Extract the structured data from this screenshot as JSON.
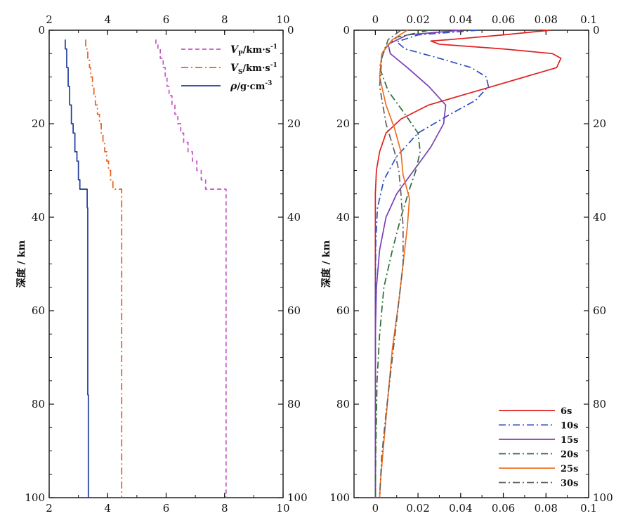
{
  "ylabel": "深度 / km",
  "chart_data": [
    {
      "type": "line",
      "panel": "velocity-density-profile",
      "xlim": [
        2,
        10
      ],
      "ylim": [
        0,
        100
      ],
      "y_inverted": true,
      "x_ticks": [
        2,
        4,
        6,
        8,
        10
      ],
      "y_ticks": [
        0,
        20,
        40,
        60,
        80,
        100
      ],
      "ylabel": "深度 / km",
      "legend_position": "top-right",
      "series": [
        {
          "name": "Vp",
          "legend": {
            "sym": "V",
            "sub": "P",
            "unit": "/km·s",
            "sup": "-1"
          },
          "color": "#c455c4",
          "dash": "6,4",
          "points": [
            [
              5.65,
              2
            ],
            [
              5.65,
              3
            ],
            [
              5.72,
              3
            ],
            [
              5.72,
              4
            ],
            [
              5.8,
              4
            ],
            [
              5.8,
              6
            ],
            [
              5.9,
              6
            ],
            [
              5.9,
              8
            ],
            [
              5.97,
              8
            ],
            [
              5.97,
              10
            ],
            [
              6.03,
              10
            ],
            [
              6.03,
              12
            ],
            [
              6.1,
              12
            ],
            [
              6.1,
              14
            ],
            [
              6.2,
              14
            ],
            [
              6.2,
              16
            ],
            [
              6.3,
              16
            ],
            [
              6.3,
              18
            ],
            [
              6.4,
              18
            ],
            [
              6.4,
              20
            ],
            [
              6.5,
              20
            ],
            [
              6.5,
              22
            ],
            [
              6.6,
              22
            ],
            [
              6.6,
              24
            ],
            [
              6.75,
              24
            ],
            [
              6.75,
              26
            ],
            [
              6.9,
              26
            ],
            [
              6.9,
              28
            ],
            [
              7.05,
              28
            ],
            [
              7.05,
              30
            ],
            [
              7.2,
              30
            ],
            [
              7.2,
              32
            ],
            [
              7.35,
              32
            ],
            [
              7.35,
              34
            ],
            [
              8.05,
              34
            ],
            [
              8.05,
              100
            ]
          ]
        },
        {
          "name": "Vs",
          "legend": {
            "sym": "V",
            "sub": "S",
            "unit": "/km·s",
            "sup": "-1"
          },
          "color": "#e8601c",
          "dash": "10,4,2,4",
          "points": [
            [
              3.25,
              2
            ],
            [
              3.25,
              4
            ],
            [
              3.32,
              4
            ],
            [
              3.32,
              6
            ],
            [
              3.38,
              6
            ],
            [
              3.38,
              8
            ],
            [
              3.42,
              8
            ],
            [
              3.42,
              10
            ],
            [
              3.48,
              10
            ],
            [
              3.48,
              12
            ],
            [
              3.53,
              12
            ],
            [
              3.53,
              14
            ],
            [
              3.58,
              14
            ],
            [
              3.58,
              16
            ],
            [
              3.65,
              16
            ],
            [
              3.65,
              18
            ],
            [
              3.72,
              18
            ],
            [
              3.72,
              20
            ],
            [
              3.78,
              20
            ],
            [
              3.78,
              22
            ],
            [
              3.84,
              22
            ],
            [
              3.84,
              24
            ],
            [
              3.9,
              24
            ],
            [
              3.9,
              26
            ],
            [
              3.97,
              26
            ],
            [
              3.97,
              28
            ],
            [
              4.03,
              28
            ],
            [
              4.03,
              30
            ],
            [
              4.1,
              30
            ],
            [
              4.1,
              32
            ],
            [
              4.18,
              32
            ],
            [
              4.18,
              34
            ],
            [
              4.48,
              34
            ],
            [
              4.48,
              100
            ]
          ]
        },
        {
          "name": "rho",
          "legend": {
            "sym": "ρ",
            "sub": "",
            "unit": "/g·cm",
            "sup": "-3"
          },
          "color": "#1f3d99",
          "dash": "",
          "points": [
            [
              2.55,
              2
            ],
            [
              2.55,
              4
            ],
            [
              2.6,
              4
            ],
            [
              2.6,
              8
            ],
            [
              2.65,
              8
            ],
            [
              2.65,
              12
            ],
            [
              2.7,
              12
            ],
            [
              2.7,
              16
            ],
            [
              2.76,
              16
            ],
            [
              2.76,
              20
            ],
            [
              2.82,
              20
            ],
            [
              2.82,
              22
            ],
            [
              2.88,
              22
            ],
            [
              2.88,
              26
            ],
            [
              2.95,
              26
            ],
            [
              2.95,
              28
            ],
            [
              3.0,
              28
            ],
            [
              3.0,
              32
            ],
            [
              3.05,
              32
            ],
            [
              3.05,
              34
            ],
            [
              3.3,
              34
            ],
            [
              3.3,
              38
            ],
            [
              3.32,
              38
            ],
            [
              3.32,
              78
            ],
            [
              3.34,
              78
            ],
            [
              3.34,
              100
            ]
          ]
        }
      ]
    },
    {
      "type": "line",
      "panel": "sensitivity-kernels",
      "xlim": [
        -0.01,
        0.1
      ],
      "ylim": [
        0,
        100
      ],
      "y_inverted": true,
      "x_ticks": [
        0,
        0.02,
        0.04,
        0.06,
        0.08,
        0.1
      ],
      "x_tick_labels": [
        "0",
        "0.02",
        "0.04",
        "0.06",
        "0.08",
        "0.1"
      ],
      "y_ticks": [
        0,
        20,
        40,
        60,
        80,
        100
      ],
      "ylabel": "深度 / km",
      "legend_position": "bottom-right",
      "series": [
        {
          "name": "6s",
          "color": "#e02020",
          "dash": "",
          "points": [
            [
              0.082,
              0
            ],
            [
              0.06,
              1
            ],
            [
              0.035,
              2
            ],
            [
              0.026,
              2.3
            ],
            [
              0.03,
              3
            ],
            [
              0.06,
              4
            ],
            [
              0.083,
              5
            ],
            [
              0.087,
              6
            ],
            [
              0.085,
              8
            ],
            [
              0.07,
              10
            ],
            [
              0.055,
              12
            ],
            [
              0.04,
              14
            ],
            [
              0.025,
              16
            ],
            [
              0.012,
              19
            ],
            [
              0.005,
              22
            ],
            [
              0.002,
              26
            ],
            [
              0.0005,
              30
            ],
            [
              0.0,
              35
            ],
            [
              0.0,
              100
            ]
          ]
        },
        {
          "name": "10s",
          "color": "#2a4fbf",
          "dash": "10,4,2,4",
          "points": [
            [
              0.048,
              0
            ],
            [
              0.02,
              1
            ],
            [
              0.01,
              2.5
            ],
            [
              0.014,
              4
            ],
            [
              0.03,
              6
            ],
            [
              0.045,
              8
            ],
            [
              0.052,
              10
            ],
            [
              0.053,
              12
            ],
            [
              0.047,
              15
            ],
            [
              0.035,
              18
            ],
            [
              0.02,
              22
            ],
            [
              0.01,
              27
            ],
            [
              0.004,
              32
            ],
            [
              0.001,
              38
            ],
            [
              0.0002,
              45
            ],
            [
              0.0,
              55
            ],
            [
              0.0,
              100
            ]
          ]
        },
        {
          "name": "15s",
          "color": "#7b3fb5",
          "dash": "",
          "points": [
            [
              0.04,
              0
            ],
            [
              0.015,
              1
            ],
            [
              0.006,
              3
            ],
            [
              0.007,
              5
            ],
            [
              0.015,
              8
            ],
            [
              0.025,
              12
            ],
            [
              0.033,
              16
            ],
            [
              0.032,
              20
            ],
            [
              0.026,
              25
            ],
            [
              0.018,
              30
            ],
            [
              0.01,
              35
            ],
            [
              0.005,
              40
            ],
            [
              0.002,
              47
            ],
            [
              0.0005,
              55
            ],
            [
              0.0,
              65
            ],
            [
              0.0,
              100
            ]
          ]
        },
        {
          "name": "20s",
          "color": "#2e6b38",
          "dash": "10,4,2,4",
          "points": [
            [
              0.025,
              0
            ],
            [
              0.01,
              1.5
            ],
            [
              0.004,
              4
            ],
            [
              0.002,
              8
            ],
            [
              0.006,
              13
            ],
            [
              0.014,
              18
            ],
            [
              0.02,
              22
            ],
            [
              0.021,
              26
            ],
            [
              0.019,
              30
            ],
            [
              0.016,
              34
            ],
            [
              0.012,
              40
            ],
            [
              0.008,
              47
            ],
            [
              0.004,
              55
            ],
            [
              0.002,
              65
            ],
            [
              0.0008,
              75
            ],
            [
              0.0002,
              90
            ],
            [
              0.0,
              100
            ]
          ]
        },
        {
          "name": "25s",
          "color": "#f07020",
          "dash": "",
          "points": [
            [
              0.015,
              0
            ],
            [
              0.008,
              2
            ],
            [
              0.003,
              5
            ],
            [
              0.002,
              10
            ],
            [
              0.005,
              16
            ],
            [
              0.009,
              21
            ],
            [
              0.012,
              26
            ],
            [
              0.013,
              31
            ],
            [
              0.016,
              36
            ],
            [
              0.015,
              42
            ],
            [
              0.013,
              50
            ],
            [
              0.011,
              58
            ],
            [
              0.008,
              68
            ],
            [
              0.006,
              78
            ],
            [
              0.004,
              88
            ],
            [
              0.0025,
              96
            ],
            [
              0.002,
              100
            ]
          ]
        },
        {
          "name": "30s",
          "color": "#606060",
          "dash": "10,4,2,4",
          "points": [
            [
              0.012,
              0
            ],
            [
              0.006,
              2
            ],
            [
              0.003,
              6
            ],
            [
              0.002,
              12
            ],
            [
              0.005,
              20
            ],
            [
              0.009,
              26
            ],
            [
              0.011,
              30
            ],
            [
              0.012,
              35
            ],
            [
              0.013,
              42
            ],
            [
              0.013,
              50
            ],
            [
              0.011,
              58
            ],
            [
              0.009,
              66
            ],
            [
              0.007,
              74
            ],
            [
              0.005,
              82
            ],
            [
              0.003,
              91
            ],
            [
              0.002,
              100
            ]
          ]
        }
      ]
    }
  ]
}
